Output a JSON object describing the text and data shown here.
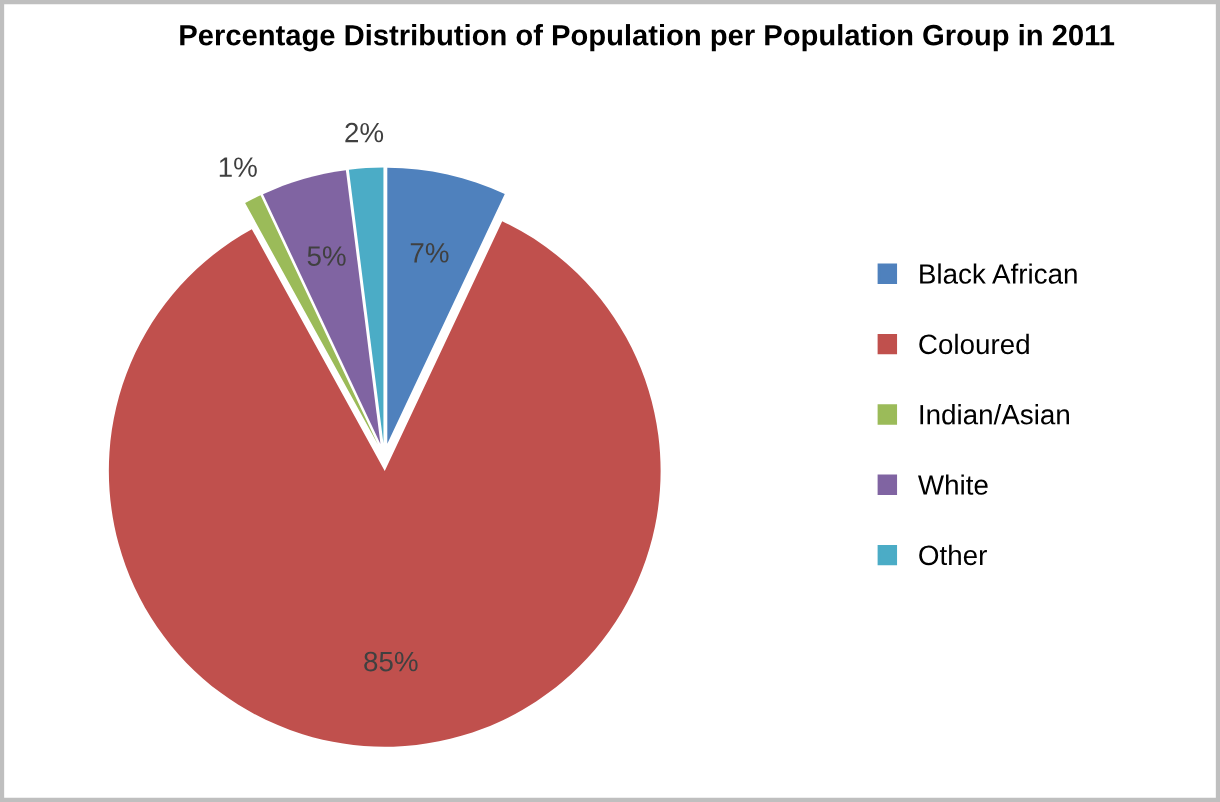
{
  "chart_data": {
    "type": "pie",
    "title": "Percentage Distribution of Population per Population Group in 2011",
    "categories": [
      "Black African",
      "Coloured",
      "Indian/Asian",
      "White",
      "Other"
    ],
    "values": [
      7,
      85,
      1,
      5,
      2
    ],
    "colors": [
      "#4f81bd",
      "#c0504d",
      "#9bbb59",
      "#8064a2",
      "#4bacc6"
    ],
    "value_labels": [
      "7%",
      "85%",
      "1%",
      "5%",
      "2%"
    ],
    "legend": "right"
  }
}
